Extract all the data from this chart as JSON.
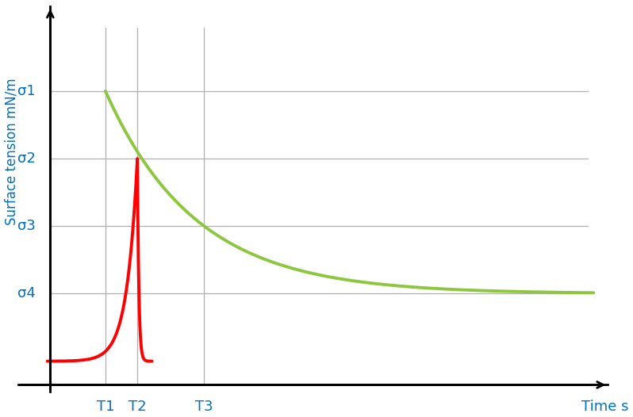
{
  "title": "",
  "ylabel": "Surface tension mN/m",
  "xlabel": "Time s",
  "background_color": "#ffffff",
  "ytick_labels": [
    "σ1",
    "σ2",
    "σ3",
    "σ4"
  ],
  "ytick_values": [
    4.0,
    3.0,
    2.0,
    1.0
  ],
  "xtick_labels": [
    "T1",
    "T2",
    "T3"
  ],
  "xtick_values": [
    1.0,
    1.55,
    2.7
  ],
  "sigma1": 4.0,
  "sigma2": 3.0,
  "sigma3": 2.0,
  "sigma4": 1.0,
  "T1": 1.0,
  "T2": 1.55,
  "T3": 2.7,
  "green_color": "#8dc63f",
  "red_color": "#ff0000",
  "grid_color": "#b0b0b0",
  "axis_color": "#000000",
  "label_color": "#0070c0",
  "ymax": 5.2,
  "xmax": 9.5,
  "xmin": 0.0,
  "ymin": 0.0,
  "y_axis_x": 0.05,
  "x_axis_y": -0.35
}
